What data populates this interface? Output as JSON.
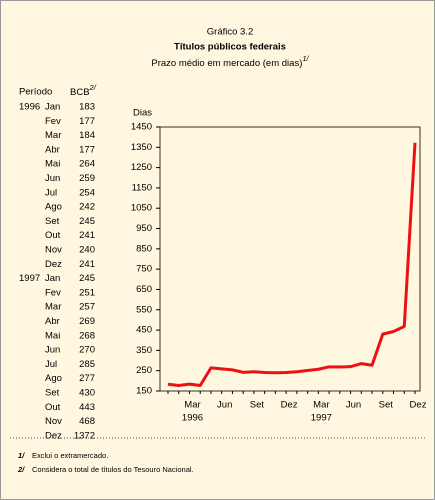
{
  "header": {
    "figure": "Gráfico 3.2",
    "title": "Títulos públicos federais",
    "subtitle": "Prazo médio em mercado (em dias)",
    "subtitle_note": "1/"
  },
  "table": {
    "period_header": "Período",
    "value_header": "BCB",
    "value_header_note": "2/",
    "rows": [
      {
        "year": "1996",
        "month": "Jan"
      },
      {
        "year": null,
        "month": "Fev"
      },
      {
        "year": null,
        "month": "Mar"
      },
      {
        "year": null,
        "month": "Abr"
      },
      {
        "year": null,
        "month": "Mai"
      },
      {
        "year": null,
        "month": "Jun"
      },
      {
        "year": null,
        "month": "Jul"
      },
      {
        "year": null,
        "month": "Ago"
      },
      {
        "year": null,
        "month": "Set"
      },
      {
        "year": null,
        "month": "Out"
      },
      {
        "year": null,
        "month": "Nov"
      },
      {
        "year": null,
        "month": "Dez"
      },
      {
        "year": "1997",
        "month": "Jan"
      },
      {
        "year": null,
        "month": "Fev"
      },
      {
        "year": null,
        "month": "Mar"
      },
      {
        "year": null,
        "month": "Abr"
      },
      {
        "year": null,
        "month": "Mai"
      },
      {
        "year": null,
        "month": "Jun"
      },
      {
        "year": null,
        "month": "Jul"
      },
      {
        "year": null,
        "month": "Ago"
      },
      {
        "year": null,
        "month": "Set"
      },
      {
        "year": null,
        "month": "Out"
      },
      {
        "year": null,
        "month": "Nov"
      },
      {
        "year": null,
        "month": "Dez"
      }
    ]
  },
  "chart_data": {
    "type": "line",
    "y_label": "Dias",
    "categories": [
      null,
      null,
      "Mar",
      null,
      null,
      "Jun",
      null,
      null,
      "Set",
      null,
      null,
      "Dez",
      null,
      null,
      "Mar",
      null,
      null,
      "Jun",
      null,
      null,
      "Set",
      null,
      null,
      "Dez"
    ],
    "x_years": [
      {
        "at": 2,
        "label": "1996"
      },
      {
        "at": 14,
        "label": "1997"
      }
    ],
    "values": [
      183,
      177,
      184,
      177,
      264,
      259,
      254,
      242,
      245,
      241,
      240,
      241,
      245,
      251,
      257,
      269,
      268,
      270,
      285,
      277,
      430,
      443,
      468,
      1372
    ],
    "color": "#ee1111",
    "ylim": [
      150,
      1450
    ],
    "yticks": [
      150,
      250,
      350,
      450,
      550,
      650,
      750,
      850,
      950,
      1050,
      1150,
      1250,
      1350,
      1450
    ]
  },
  "footnotes": [
    {
      "mark": "1/",
      "text": "Exclui o extramercado."
    },
    {
      "mark": "2/",
      "text": "Considera o total de títulos do Tesouro Nacional."
    }
  ]
}
